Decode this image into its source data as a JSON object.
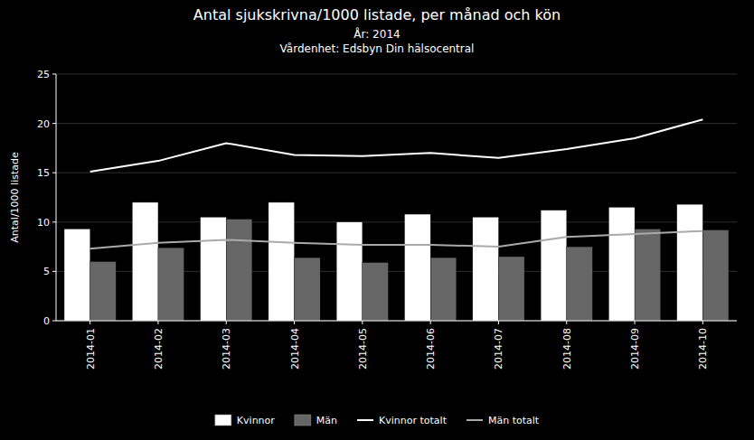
{
  "chart_data": {
    "type": "bar",
    "title": "Antal sjukskrivna/1000 listade, per månad och kön",
    "subtitle": [
      "År: 2014",
      "Vårdenhet: Edsbyn Din hälsocentral"
    ],
    "ylabel": "Antal/1000 listade",
    "categories": [
      "2014-01",
      "2014-02",
      "2014-03",
      "2014-04",
      "2014-05",
      "2014-06",
      "2014-07",
      "2014-08",
      "2014-09",
      "2014-10"
    ],
    "series": [
      {
        "name": "Kvinnor",
        "type": "bar",
        "color": "#ffffff",
        "values": [
          9.3,
          12.0,
          10.5,
          12.0,
          10.0,
          10.8,
          10.5,
          11.2,
          11.5,
          11.8
        ]
      },
      {
        "name": "Män",
        "type": "bar",
        "color": "#666666",
        "values": [
          6.0,
          7.4,
          10.3,
          6.4,
          5.9,
          6.4,
          6.5,
          7.5,
          9.3,
          9.2
        ]
      },
      {
        "name": "Kvinnor totalt",
        "type": "line",
        "color": "#ffffff",
        "values": [
          15.1,
          16.2,
          18.0,
          16.8,
          16.7,
          17.0,
          16.5,
          17.4,
          18.5,
          20.4
        ]
      },
      {
        "name": "Män totalt",
        "type": "line",
        "color": "#aaaaaa",
        "values": [
          7.3,
          7.9,
          8.2,
          7.9,
          7.7,
          7.7,
          7.5,
          8.5,
          8.8,
          9.1
        ]
      }
    ],
    "ylim": [
      0,
      25
    ],
    "yticks": [
      0,
      5,
      10,
      15,
      20,
      25
    ],
    "grid": true,
    "legend": "bottom"
  }
}
